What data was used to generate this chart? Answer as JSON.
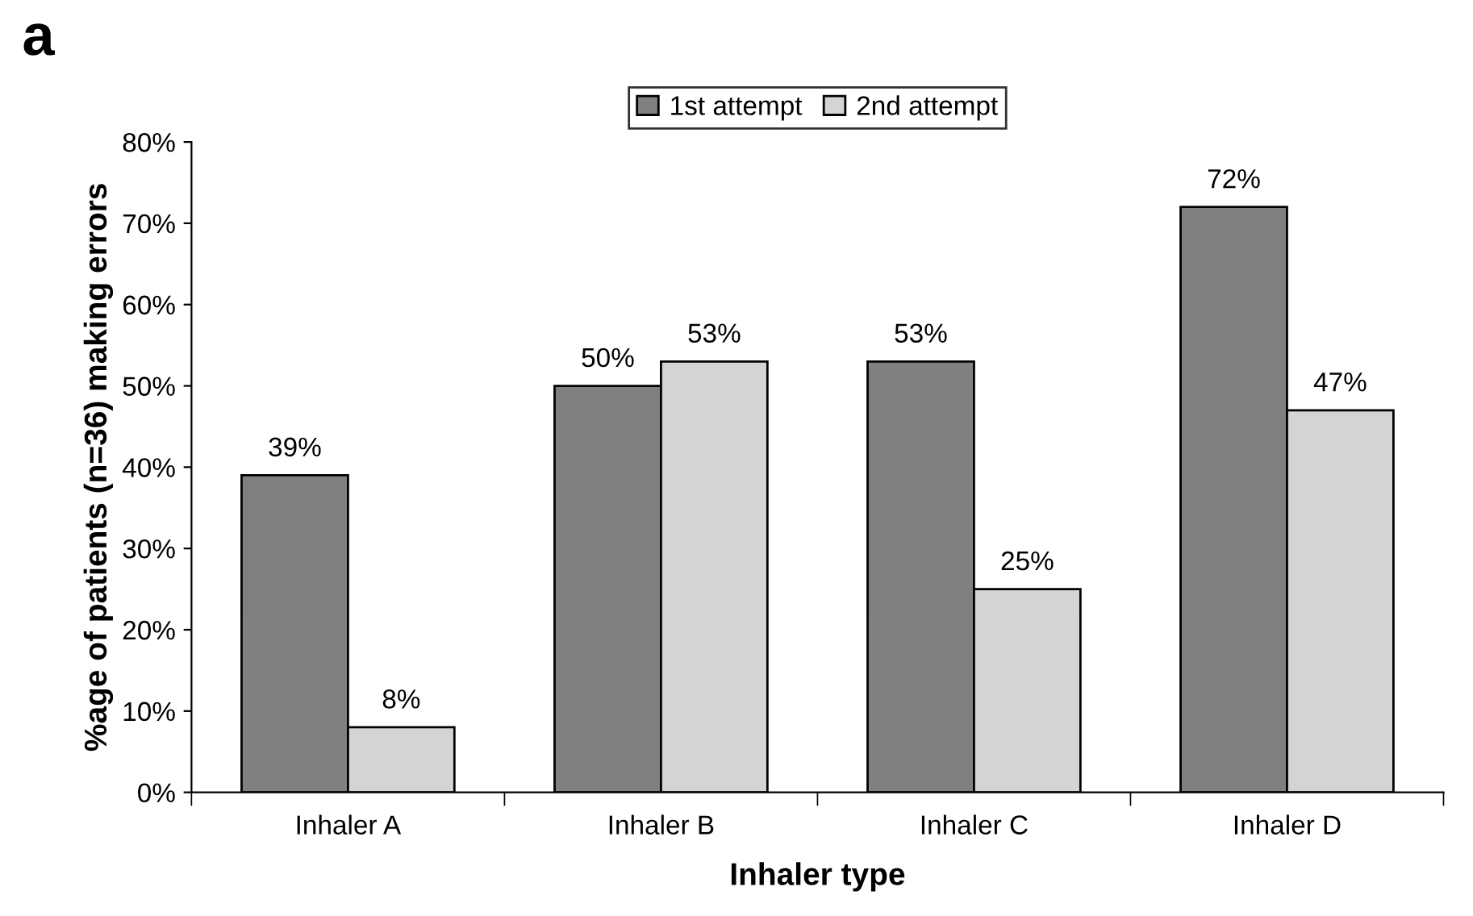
{
  "chart_data": {
    "type": "bar",
    "title": "a",
    "xlabel": "Inhaler type",
    "ylabel": "%age of patients (n=36) making errors",
    "categories": [
      "Inhaler A",
      "Inhaler B",
      "Inhaler C",
      "Inhaler D"
    ],
    "series": [
      {
        "name": "1st attempt",
        "color": "#808080",
        "values": [
          39,
          50,
          53,
          72
        ],
        "value_labels": [
          "39%",
          "50%",
          "53%",
          "72%"
        ]
      },
      {
        "name": "2nd attempt",
        "color": "#d4d4d4",
        "values": [
          8,
          53,
          25,
          47
        ],
        "value_labels": [
          "8%",
          "53%",
          "25%",
          "47%"
        ]
      }
    ],
    "ylim": [
      0,
      80
    ],
    "yticks": [
      {
        "value": 0,
        "label": "0%"
      },
      {
        "value": 10,
        "label": "10%"
      },
      {
        "value": 20,
        "label": "20%"
      },
      {
        "value": 30,
        "label": "30%"
      },
      {
        "value": 40,
        "label": "40%"
      },
      {
        "value": 50,
        "label": "50%"
      },
      {
        "value": 60,
        "label": "60%"
      },
      {
        "value": 70,
        "label": "70%"
      },
      {
        "value": 80,
        "label": "80%"
      }
    ],
    "grid": false,
    "legend": "top"
  }
}
